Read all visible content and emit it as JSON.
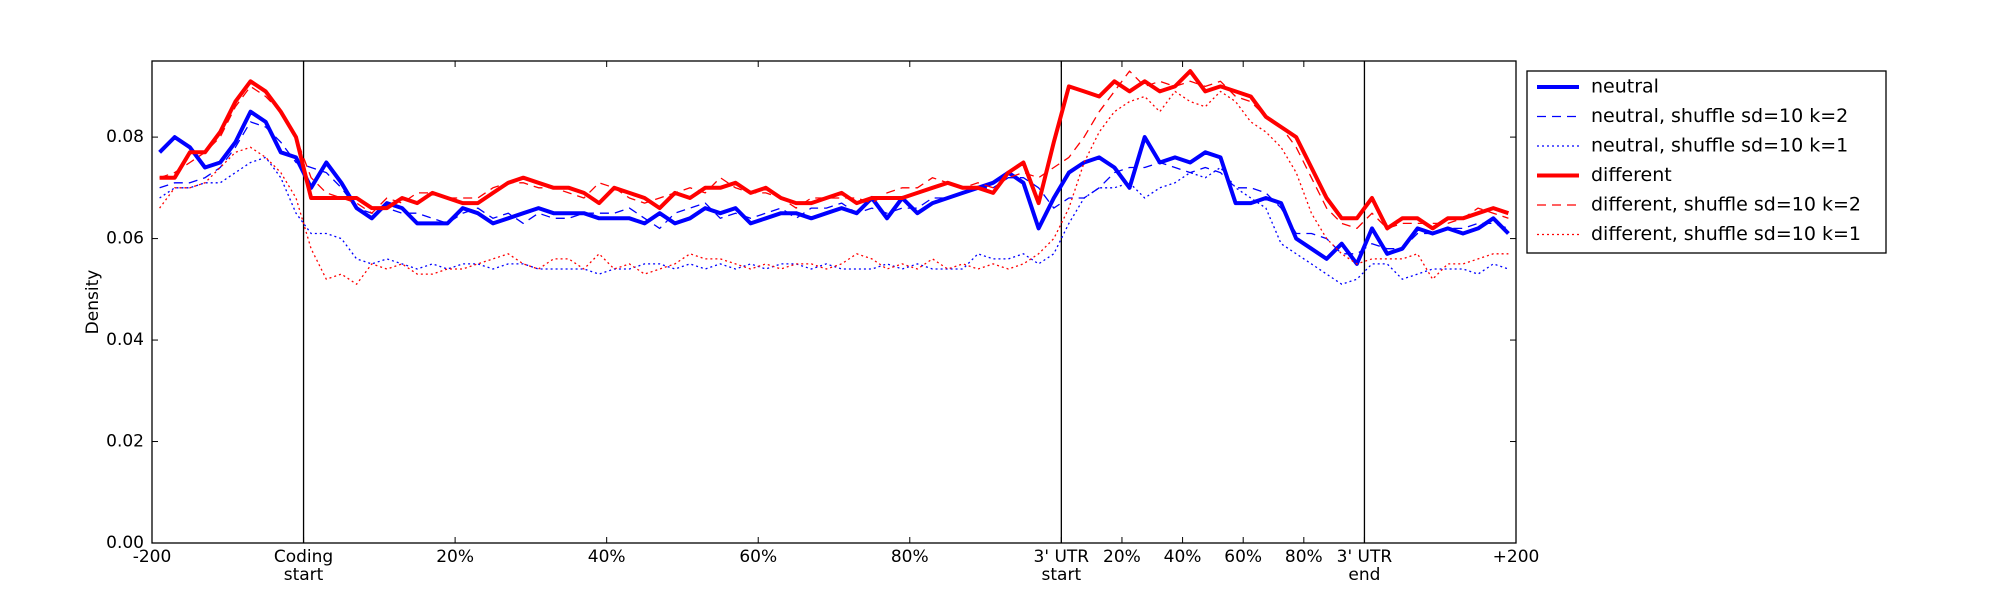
{
  "chart_data": {
    "type": "line",
    "ylabel": "Density",
    "x": [
      1,
      3,
      5,
      7,
      9,
      11,
      13,
      15,
      17,
      19,
      21,
      23,
      25,
      27,
      29,
      31,
      33,
      35,
      37,
      39,
      41,
      43,
      45,
      47,
      49,
      51,
      53,
      55,
      57,
      59,
      61,
      63,
      65,
      67,
      69,
      71,
      73,
      75,
      77,
      79,
      81,
      83,
      85,
      87,
      89,
      91,
      93,
      95,
      97,
      99,
      101,
      103,
      105,
      107,
      109,
      111,
      113,
      115,
      117,
      119,
      121,
      123,
      125,
      127,
      129,
      131,
      133,
      135,
      137,
      139,
      141,
      143,
      145,
      147,
      149,
      151,
      153,
      155,
      157,
      159,
      161,
      163,
      165,
      167,
      169,
      171,
      173,
      175,
      177,
      179
    ],
    "xlim": [
      0,
      180
    ],
    "xticks": [
      {
        "value": 0,
        "label": "-200"
      },
      {
        "value": 20,
        "label": "Coding start"
      },
      {
        "value": 40,
        "label": "20%"
      },
      {
        "value": 60,
        "label": "40%"
      },
      {
        "value": 80,
        "label": "60%"
      },
      {
        "value": 100,
        "label": "80%"
      },
      {
        "value": 120,
        "label": "3' UTR start"
      },
      {
        "value": 128,
        "label": "20%"
      },
      {
        "value": 136,
        "label": "40%"
      },
      {
        "value": 144,
        "label": "60%"
      },
      {
        "value": 152,
        "label": "80%"
      },
      {
        "value": 160,
        "label": "3' UTR end"
      },
      {
        "value": 180,
        "label": "+200"
      }
    ],
    "vlines": [
      20,
      120,
      160
    ],
    "ylim": [
      0,
      0.095
    ],
    "yticks": [
      {
        "value": 0,
        "label": "0.00"
      },
      {
        "value": 0.02,
        "label": "0.02"
      },
      {
        "value": 0.04,
        "label": "0.04"
      },
      {
        "value": 0.06,
        "label": "0.06"
      },
      {
        "value": 0.08,
        "label": "0.08"
      }
    ],
    "legend": "outside-right",
    "series": [
      {
        "name": "neutral",
        "color": "#0000ff",
        "linestyle": "solid",
        "linewidth": 4,
        "values": [
          0.077,
          0.08,
          0.078,
          0.074,
          0.075,
          0.079,
          0.085,
          0.083,
          0.077,
          0.076,
          0.07,
          0.075,
          0.071,
          0.066,
          0.064,
          0.067,
          0.066,
          0.063,
          0.063,
          0.063,
          0.066,
          0.065,
          0.063,
          0.064,
          0.065,
          0.066,
          0.065,
          0.065,
          0.065,
          0.064,
          0.064,
          0.064,
          0.063,
          0.065,
          0.063,
          0.064,
          0.066,
          0.065,
          0.066,
          0.063,
          0.064,
          0.065,
          0.065,
          0.064,
          0.065,
          0.066,
          0.065,
          0.068,
          0.064,
          0.068,
          0.065,
          0.067,
          0.068,
          0.069,
          0.07,
          0.071,
          0.073,
          0.071,
          0.062,
          0.068,
          0.073,
          0.075,
          0.076,
          0.074,
          0.07,
          0.08,
          0.075,
          0.076,
          0.075,
          0.077,
          0.076,
          0.067,
          0.067,
          0.068,
          0.067,
          0.06,
          0.058,
          0.056,
          0.059,
          0.055,
          0.062,
          0.057,
          0.058,
          0.062,
          0.061,
          0.062,
          0.061,
          0.062,
          0.064,
          0.061
        ]
      },
      {
        "name": "neutral, shuffle sd=10 k=2",
        "color": "#0000ff",
        "linestyle": "dashed",
        "linewidth": 1.3,
        "values": [
          0.07,
          0.071,
          0.071,
          0.072,
          0.074,
          0.078,
          0.083,
          0.082,
          0.079,
          0.075,
          0.074,
          0.073,
          0.07,
          0.066,
          0.065,
          0.066,
          0.065,
          0.065,
          0.064,
          0.063,
          0.065,
          0.066,
          0.064,
          0.065,
          0.063,
          0.065,
          0.064,
          0.064,
          0.065,
          0.065,
          0.065,
          0.066,
          0.064,
          0.062,
          0.065,
          0.066,
          0.067,
          0.064,
          0.065,
          0.064,
          0.065,
          0.066,
          0.064,
          0.066,
          0.066,
          0.067,
          0.065,
          0.066,
          0.065,
          0.066,
          0.066,
          0.068,
          0.068,
          0.069,
          0.07,
          0.07,
          0.072,
          0.072,
          0.07,
          0.066,
          0.068,
          0.068,
          0.07,
          0.073,
          0.074,
          0.074,
          0.075,
          0.074,
          0.073,
          0.074,
          0.073,
          0.07,
          0.07,
          0.069,
          0.066,
          0.061,
          0.061,
          0.06,
          0.057,
          0.057,
          0.059,
          0.058,
          0.058,
          0.061,
          0.061,
          0.062,
          0.062,
          0.063,
          0.063,
          0.062
        ]
      },
      {
        "name": "neutral, shuffle sd=10 k=1",
        "color": "#0000ff",
        "linestyle": "dotted",
        "linewidth": 1.3,
        "values": [
          0.068,
          0.07,
          0.07,
          0.071,
          0.071,
          0.073,
          0.075,
          0.076,
          0.072,
          0.065,
          0.061,
          0.061,
          0.06,
          0.056,
          0.055,
          0.056,
          0.055,
          0.054,
          0.055,
          0.054,
          0.055,
          0.055,
          0.054,
          0.055,
          0.055,
          0.054,
          0.054,
          0.054,
          0.054,
          0.053,
          0.054,
          0.054,
          0.055,
          0.055,
          0.054,
          0.055,
          0.054,
          0.055,
          0.054,
          0.055,
          0.054,
          0.055,
          0.055,
          0.054,
          0.055,
          0.054,
          0.054,
          0.054,
          0.055,
          0.054,
          0.055,
          0.054,
          0.054,
          0.054,
          0.057,
          0.056,
          0.056,
          0.057,
          0.055,
          0.057,
          0.063,
          0.068,
          0.07,
          0.07,
          0.071,
          0.068,
          0.07,
          0.071,
          0.073,
          0.072,
          0.074,
          0.07,
          0.068,
          0.066,
          0.059,
          0.057,
          0.055,
          0.053,
          0.051,
          0.052,
          0.055,
          0.055,
          0.052,
          0.053,
          0.054,
          0.054,
          0.054,
          0.053,
          0.055,
          0.054
        ]
      },
      {
        "name": "different",
        "color": "#ff0000",
        "linestyle": "solid",
        "linewidth": 4,
        "values": [
          0.072,
          0.072,
          0.077,
          0.077,
          0.081,
          0.087,
          0.091,
          0.089,
          0.085,
          0.08,
          0.068,
          0.068,
          0.068,
          0.068,
          0.066,
          0.066,
          0.068,
          0.067,
          0.069,
          0.068,
          0.067,
          0.067,
          0.069,
          0.071,
          0.072,
          0.071,
          0.07,
          0.07,
          0.069,
          0.067,
          0.07,
          0.069,
          0.068,
          0.066,
          0.069,
          0.068,
          0.07,
          0.07,
          0.071,
          0.069,
          0.07,
          0.068,
          0.067,
          0.067,
          0.068,
          0.069,
          0.067,
          0.068,
          0.068,
          0.068,
          0.069,
          0.07,
          0.071,
          0.07,
          0.07,
          0.069,
          0.073,
          0.075,
          0.067,
          0.079,
          0.09,
          0.089,
          0.088,
          0.091,
          0.089,
          0.091,
          0.089,
          0.09,
          0.093,
          0.089,
          0.09,
          0.089,
          0.088,
          0.084,
          0.082,
          0.08,
          0.074,
          0.068,
          0.064,
          0.064,
          0.068,
          0.062,
          0.064,
          0.064,
          0.062,
          0.064,
          0.064,
          0.065,
          0.066,
          0.065
        ]
      },
      {
        "name": "different, shuffle sd=10 k=2",
        "color": "#ff0000",
        "linestyle": "dashed",
        "linewidth": 1.3,
        "values": [
          0.072,
          0.073,
          0.075,
          0.077,
          0.08,
          0.086,
          0.09,
          0.088,
          0.085,
          0.08,
          0.072,
          0.069,
          0.068,
          0.067,
          0.065,
          0.068,
          0.067,
          0.069,
          0.069,
          0.068,
          0.068,
          0.068,
          0.07,
          0.071,
          0.071,
          0.07,
          0.07,
          0.069,
          0.068,
          0.071,
          0.07,
          0.068,
          0.067,
          0.068,
          0.069,
          0.07,
          0.069,
          0.072,
          0.07,
          0.069,
          0.069,
          0.068,
          0.066,
          0.068,
          0.068,
          0.068,
          0.068,
          0.067,
          0.069,
          0.07,
          0.07,
          0.072,
          0.071,
          0.07,
          0.071,
          0.07,
          0.072,
          0.073,
          0.072,
          0.074,
          0.076,
          0.08,
          0.085,
          0.089,
          0.093,
          0.09,
          0.091,
          0.09,
          0.091,
          0.09,
          0.091,
          0.088,
          0.087,
          0.084,
          0.082,
          0.078,
          0.072,
          0.066,
          0.063,
          0.062,
          0.065,
          0.062,
          0.063,
          0.063,
          0.063,
          0.063,
          0.064,
          0.066,
          0.065,
          0.064
        ]
      },
      {
        "name": "different, shuffle sd=10 k=1",
        "color": "#ff0000",
        "linestyle": "dotted",
        "linewidth": 1.3,
        "values": [
          0.066,
          0.07,
          0.07,
          0.071,
          0.074,
          0.077,
          0.078,
          0.076,
          0.073,
          0.068,
          0.058,
          0.052,
          0.053,
          0.051,
          0.055,
          0.054,
          0.055,
          0.053,
          0.053,
          0.054,
          0.054,
          0.055,
          0.056,
          0.057,
          0.055,
          0.054,
          0.056,
          0.056,
          0.054,
          0.057,
          0.054,
          0.055,
          0.053,
          0.054,
          0.055,
          0.057,
          0.056,
          0.056,
          0.055,
          0.054,
          0.055,
          0.054,
          0.055,
          0.055,
          0.054,
          0.055,
          0.057,
          0.056,
          0.054,
          0.055,
          0.054,
          0.056,
          0.054,
          0.055,
          0.054,
          0.055,
          0.054,
          0.055,
          0.057,
          0.06,
          0.066,
          0.075,
          0.081,
          0.085,
          0.087,
          0.088,
          0.085,
          0.089,
          0.087,
          0.086,
          0.089,
          0.087,
          0.083,
          0.081,
          0.078,
          0.073,
          0.065,
          0.06,
          0.057,
          0.055,
          0.056,
          0.056,
          0.056,
          0.057,
          0.052,
          0.055,
          0.055,
          0.056,
          0.057,
          0.057
        ]
      }
    ]
  }
}
